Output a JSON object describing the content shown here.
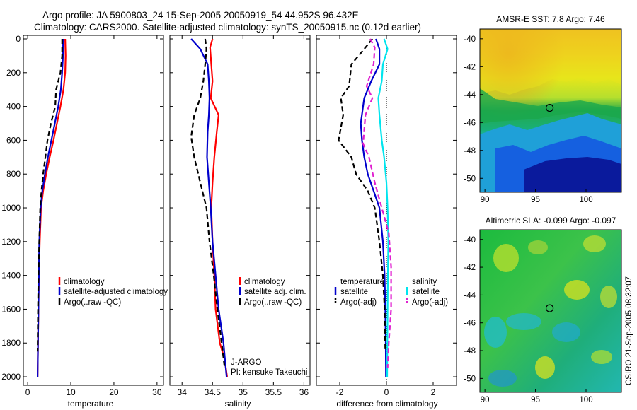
{
  "header": {
    "line1": "Argo profile: JA 5900803_24 15-Sep-2005 20050919_54 44.952S 96.432E",
    "line2": "Climatology: CARS2000. Satellite-adjusted climatology: synTS_20050915.nc (0.12d earlier)"
  },
  "colors": {
    "climatology": "#ff0000",
    "satellite": "#0000cc",
    "argo": "#000000",
    "salinity_sat": "#00e5ee",
    "salinity_argo": "#e020d0"
  },
  "chart_data": [
    {
      "type": "line",
      "id": "temperature",
      "xlabel": "temperature",
      "xlim": [
        -1,
        31.5
      ],
      "ylim": [
        0,
        2050
      ],
      "y_reversed": true,
      "xticks": [
        0,
        10,
        20,
        30
      ],
      "yticks": [
        0,
        200,
        400,
        600,
        800,
        1000,
        1200,
        1400,
        1600,
        1800,
        2000
      ],
      "legend": [
        "climatology",
        "satellite-adjusted climatology",
        "Argo(..raw -QC)"
      ],
      "series": [
        {
          "name": "climatology",
          "style": "solid",
          "color": "#ff0000",
          "x": [
            8.7,
            8.8,
            8.7,
            8.3,
            7.6,
            6.8,
            6.0,
            5.1,
            4.3,
            3.6,
            3.1,
            2.8,
            2.6,
            2.5,
            2.4,
            2.3
          ],
          "y": [
            0,
            100,
            200,
            300,
            400,
            500,
            600,
            700,
            800,
            900,
            1000,
            1200,
            1400,
            1600,
            1800,
            2000
          ]
        },
        {
          "name": "satellite-adjusted climatology",
          "style": "solid",
          "color": "#0000cc",
          "x": [
            8.2,
            8.2,
            8.0,
            7.7,
            7.1,
            6.3,
            5.5,
            4.7,
            4.0,
            3.4,
            3.0,
            2.7,
            2.6,
            2.5,
            2.4,
            2.3
          ],
          "y": [
            0,
            100,
            200,
            300,
            400,
            500,
            600,
            700,
            800,
            900,
            1000,
            1200,
            1400,
            1600,
            1800,
            2000
          ]
        },
        {
          "name": "Argo(..raw -QC)",
          "style": "dashed",
          "color": "#000000",
          "x": [
            8.0,
            8.0,
            7.6,
            6.6,
            6.4,
            5.4,
            4.6,
            4.1,
            3.6,
            3.2,
            2.9,
            2.7,
            2.5,
            2.4,
            2.3
          ],
          "y": [
            0,
            100,
            200,
            300,
            400,
            500,
            600,
            700,
            800,
            900,
            1000,
            1200,
            1400,
            1600,
            1850
          ]
        }
      ]
    },
    {
      "type": "line",
      "id": "salinity",
      "xlabel": "salinity",
      "xlim": [
        33.8,
        36.1
      ],
      "ylim": [
        0,
        2050
      ],
      "y_reversed": true,
      "xticks": [
        34,
        34.5,
        35,
        35.5,
        36
      ],
      "xticklabels": [
        "34",
        "34.5",
        "35",
        "35.5",
        "36"
      ],
      "legend": [
        "climatology",
        "satellite adj. clim.",
        "Argo(..raw -QC)"
      ],
      "annotations": [
        "J-ARGO",
        "PI: kensuke Takeuchi"
      ],
      "series": [
        {
          "name": "climatology",
          "style": "solid",
          "color": "#ff0000",
          "x": [
            34.5,
            34.46,
            34.48,
            34.5,
            34.47,
            34.6,
            34.57,
            34.53,
            34.5,
            34.48,
            34.5,
            34.53,
            34.55,
            34.62,
            34.7,
            34.74
          ],
          "y": [
            0,
            50,
            150,
            250,
            350,
            450,
            550,
            700,
            850,
            1000,
            1200,
            1400,
            1600,
            1800,
            1900,
            2000
          ]
        },
        {
          "name": "satellite adj. clim.",
          "style": "solid",
          "color": "#0000cc",
          "x": [
            34.15,
            34.3,
            34.42,
            34.44,
            34.45,
            34.44,
            34.42,
            34.41,
            34.44,
            34.47,
            34.5,
            34.55,
            34.6,
            34.68,
            34.73
          ],
          "y": [
            0,
            60,
            150,
            250,
            350,
            450,
            550,
            700,
            850,
            1000,
            1200,
            1400,
            1600,
            1800,
            2000
          ]
        },
        {
          "name": "Argo(..raw -QC)",
          "style": "dashed",
          "color": "#000000",
          "x": [
            34.38,
            34.4,
            34.38,
            34.35,
            34.3,
            34.2,
            34.15,
            34.2,
            34.3,
            34.4,
            34.45,
            34.52,
            34.58,
            34.65,
            34.7
          ],
          "y": [
            0,
            60,
            150,
            250,
            350,
            450,
            580,
            700,
            850,
            1000,
            1200,
            1400,
            1600,
            1800,
            1950
          ]
        }
      ]
    },
    {
      "type": "line",
      "id": "difference",
      "xlabel": "difference from climatology",
      "xlim": [
        -3.0,
        3.0
      ],
      "ylim": [
        0,
        2050
      ],
      "y_reversed": true,
      "xticks": [
        -2,
        0,
        2
      ],
      "xticklabels": [
        "-2",
        "0",
        "2"
      ],
      "legend_left": [
        "temperature",
        "satellite",
        "Argo(-adj)"
      ],
      "legend_right": [
        "salinity",
        "satellite",
        "Argo(-adj)"
      ],
      "series": [
        {
          "name": "temperature satellite",
          "style": "solid",
          "color": "#0000cc",
          "x": [
            -0.45,
            -0.3,
            -0.3,
            -0.65,
            -0.95,
            -1.1,
            -1.05,
            -0.95,
            -0.8,
            -0.55,
            -0.3,
            -0.15,
            -0.08,
            -0.05,
            -0.03,
            -0.02
          ],
          "y": [
            0,
            60,
            150,
            250,
            350,
            500,
            600,
            700,
            800,
            900,
            1000,
            1200,
            1400,
            1600,
            1800,
            2000
          ]
        },
        {
          "name": "temperature Argo(-adj)",
          "style": "dashed",
          "color": "#000000",
          "x": [
            -0.6,
            -0.95,
            -1.5,
            -1.6,
            -1.95,
            -1.85,
            -2.05,
            -1.5,
            -1.3,
            -0.8,
            -0.5,
            -0.3,
            -0.15,
            -0.08,
            -0.05
          ],
          "y": [
            0,
            60,
            150,
            280,
            350,
            450,
            600,
            700,
            800,
            900,
            1000,
            1200,
            1400,
            1600,
            1850
          ]
        },
        {
          "name": "salinity satellite",
          "style": "solid",
          "color": "#00e5ee",
          "x": [
            -0.1,
            0.05,
            -0.15,
            -0.2,
            -0.35,
            -0.3,
            -0.2,
            -0.1,
            0.0,
            0.05,
            0.08,
            0.06,
            0.05,
            0.04,
            0.03
          ],
          "y": [
            0,
            60,
            150,
            250,
            350,
            450,
            600,
            700,
            850,
            1000,
            1200,
            1400,
            1600,
            1800,
            2000
          ]
        },
        {
          "name": "salinity Argo(-adj)",
          "style": "dashed",
          "color": "#e020d0",
          "x": [
            -0.7,
            -0.5,
            -0.55,
            -0.85,
            -0.6,
            -0.9,
            -1.0,
            -0.75,
            -0.5,
            -0.2,
            0.1,
            0.2,
            0.2,
            0.1,
            0.05
          ],
          "y": [
            0,
            50,
            150,
            280,
            350,
            450,
            620,
            700,
            850,
            1000,
            1150,
            1350,
            1600,
            1800,
            1950
          ]
        }
      ]
    },
    {
      "type": "heatmap",
      "id": "sst_map",
      "title": "AMSR-E SST: 7.8 Argo: 7.46",
      "xlim": [
        89.5,
        103.5
      ],
      "ylim": [
        -51,
        -39.3
      ],
      "xticks": [
        90,
        95,
        100
      ],
      "yticks": [
        -40,
        -42,
        -44,
        -46,
        -48,
        -50
      ],
      "marker": {
        "lon": 96.4,
        "lat": -44.95
      }
    },
    {
      "type": "heatmap",
      "id": "sla_map",
      "title": "Altimetric SLA: -0.099 Argo: -0.097",
      "xlim": [
        89.5,
        103.5
      ],
      "ylim": [
        -51,
        -39.3
      ],
      "xticks": [
        90,
        95,
        100
      ],
      "yticks": [
        -40,
        -42,
        -44,
        -46,
        -48,
        -50
      ],
      "marker": {
        "lon": 96.4,
        "lat": -44.95
      },
      "side_label": "CSIRO 21-Sep-2005 08:32:07"
    }
  ]
}
